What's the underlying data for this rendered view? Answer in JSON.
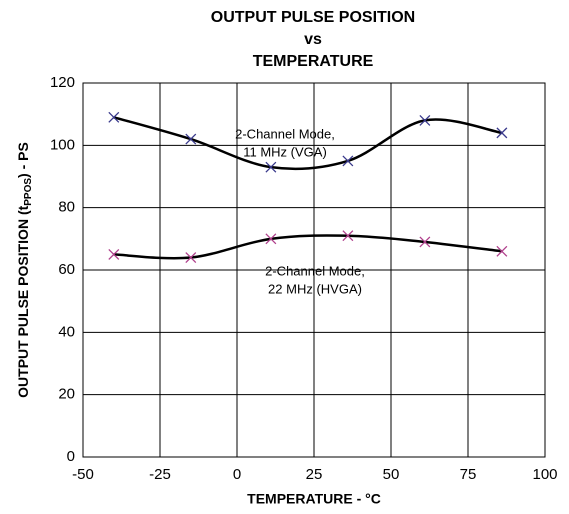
{
  "chart_data": {
    "type": "line",
    "title_lines": [
      "OUTPUT PULSE POSITION",
      "vs",
      "TEMPERATURE"
    ],
    "x_label": "TEMPERATURE - °C",
    "y_label": [
      "OUTPUT PULSE POSITION (t",
      "PPOS",
      ") - PS"
    ],
    "xlim": [
      -50,
      100
    ],
    "xticks": [
      -50,
      -25,
      0,
      25,
      50,
      75,
      100
    ],
    "ylim": [
      0,
      120
    ],
    "yticks": [
      0,
      20,
      40,
      60,
      80,
      100,
      120
    ],
    "grid": true,
    "line_color": "#000000",
    "series": [
      {
        "name": [
          "2-Channel Mode,",
          "11 MHz (VGA)"
        ],
        "color": "#3a3a8c",
        "x": [
          -40,
          -15,
          11,
          36,
          61,
          86
        ],
        "values": [
          109,
          102,
          93,
          95,
          108,
          104
        ]
      },
      {
        "name": [
          "2-Channel Mode,",
          "22 MHz (HVGA)"
        ],
        "color": "#b0408c",
        "x": [
          -40,
          -15,
          11,
          36,
          61,
          86
        ],
        "values": [
          65,
          64,
          70,
          71,
          69,
          66
        ]
      }
    ]
  }
}
